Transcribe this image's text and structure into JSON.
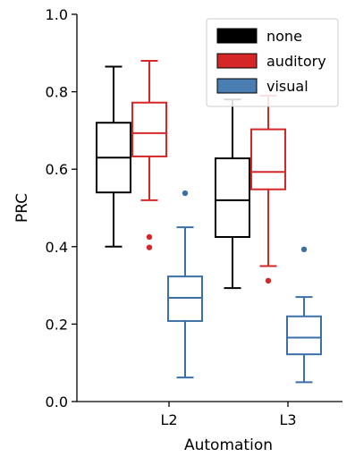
{
  "chart_data": {
    "type": "box",
    "xlabel": "Automation",
    "ylabel": "PRC",
    "ylim": [
      0.0,
      1.0
    ],
    "yticks": [
      "0.0",
      "0.2",
      "0.4",
      "0.6",
      "0.8",
      "1.0"
    ],
    "categories": [
      "L2",
      "L3"
    ],
    "legend_position": "top-right",
    "grid": false,
    "series": [
      {
        "name": "none",
        "color": "#000000",
        "legend_fill": "#000000",
        "boxes": [
          {
            "whisker_low": 0.4,
            "q1": 0.54,
            "median": 0.63,
            "q3": 0.72,
            "whisker_high": 0.865,
            "outliers": []
          },
          {
            "whisker_low": 0.293,
            "q1": 0.425,
            "median": 0.52,
            "q3": 0.628,
            "whisker_high": 0.78,
            "outliers": []
          }
        ]
      },
      {
        "name": "auditory",
        "color": "#d62728",
        "legend_fill": "#d62728",
        "boxes": [
          {
            "whisker_low": 0.52,
            "q1": 0.633,
            "median": 0.693,
            "q3": 0.772,
            "whisker_high": 0.88,
            "outliers": [
              0.425,
              0.398
            ]
          },
          {
            "whisker_low": 0.35,
            "q1": 0.548,
            "median": 0.593,
            "q3": 0.703,
            "whisker_high": 0.79,
            "outliers": [
              0.312
            ]
          }
        ]
      },
      {
        "name": "visual",
        "color": "#3b6fa8",
        "legend_fill": "#4a7eb3",
        "boxes": [
          {
            "whisker_low": 0.062,
            "q1": 0.208,
            "median": 0.268,
            "q3": 0.323,
            "whisker_high": 0.45,
            "outliers": [
              0.538
            ]
          },
          {
            "whisker_low": 0.05,
            "q1": 0.122,
            "median": 0.165,
            "q3": 0.22,
            "whisker_high": 0.27,
            "outliers": [
              0.393
            ]
          }
        ]
      }
    ]
  }
}
